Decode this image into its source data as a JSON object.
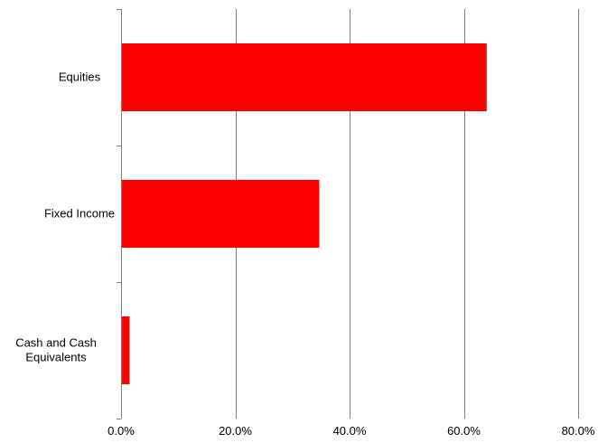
{
  "chart_data": {
    "type": "bar",
    "orientation": "horizontal",
    "categories": [
      "Equities",
      "Fixed Income",
      "Cash and Cash Equivalents"
    ],
    "category_label_lines": [
      [
        "Equities"
      ],
      [
        "Fixed Income"
      ],
      [
        "Cash and Cash",
        "Equivalents"
      ]
    ],
    "values": [
      0.64,
      0.347,
      0.015
    ],
    "x_ticks": [
      0,
      0.2,
      0.4,
      0.6,
      0.8
    ],
    "x_tick_labels": [
      "0.0%",
      "20.0%",
      "40.0%",
      "60.0%",
      "80.0%"
    ],
    "xlim": [
      0,
      0.8
    ],
    "grid": "vertical",
    "legend": "none",
    "bar_color": "#ff0000",
    "grid_color": "#808080",
    "axis_color": "#808080"
  }
}
